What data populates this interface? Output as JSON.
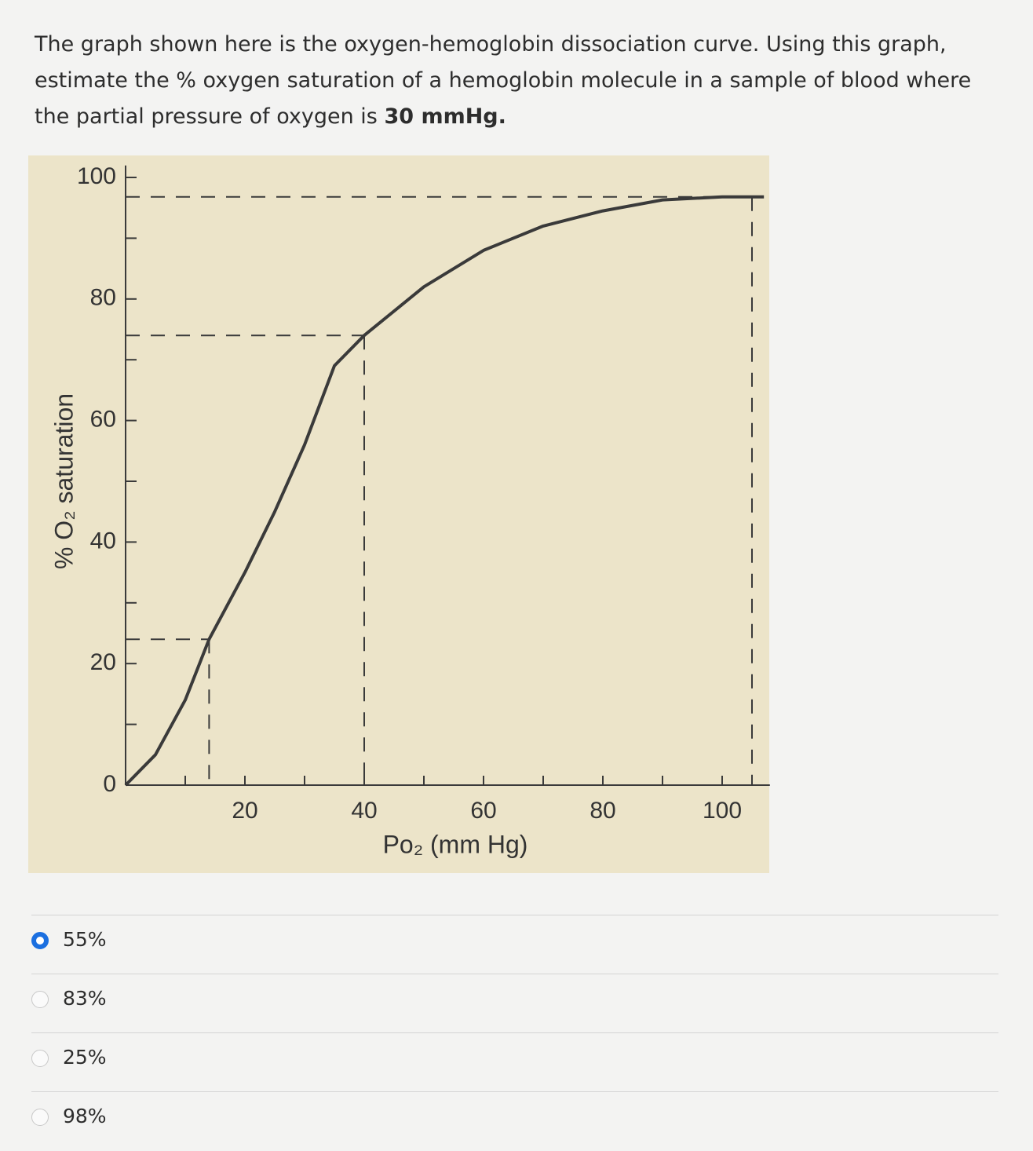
{
  "question": {
    "text": "The graph shown here is the oxygen-hemoglobin dissociation curve. Using this graph, estimate the % oxygen saturation of a hemoglobin molecule in a sample of blood where the partial pressure of oxygen is",
    "emphasis": "30 mmHg."
  },
  "chart_data": {
    "type": "line",
    "x_label": "Po₂ (mm Hg)",
    "y_label": "% O₂ saturation",
    "x": [
      0,
      5,
      10,
      14,
      20,
      25,
      30,
      35,
      40,
      50,
      60,
      70,
      80,
      90,
      100,
      107
    ],
    "series": [
      {
        "name": "O₂ saturation",
        "color": "#3a3a3a",
        "values": [
          0,
          5,
          14,
          24,
          35,
          45,
          56,
          69,
          74,
          82,
          88,
          92,
          94.5,
          96.3,
          96.8,
          96.8
        ]
      }
    ],
    "xlim": [
      0,
      108
    ],
    "ylim": [
      0,
      103
    ],
    "xticks": [
      20,
      40,
      60,
      80,
      100
    ],
    "yticks": [
      0,
      20,
      40,
      60,
      80,
      100
    ],
    "x_minor_ticks": [
      10,
      30,
      50,
      70,
      90,
      105
    ],
    "y_minor_ticks": [
      10,
      30,
      50,
      70,
      90
    ],
    "guides": [
      {
        "x": 14,
        "y": 24
      },
      {
        "x": 40,
        "y": 74
      },
      {
        "x": 105,
        "y": 96.8
      }
    ]
  },
  "options": {
    "items": [
      "55%",
      "83%",
      "25%",
      "98%"
    ],
    "selected": 0
  }
}
